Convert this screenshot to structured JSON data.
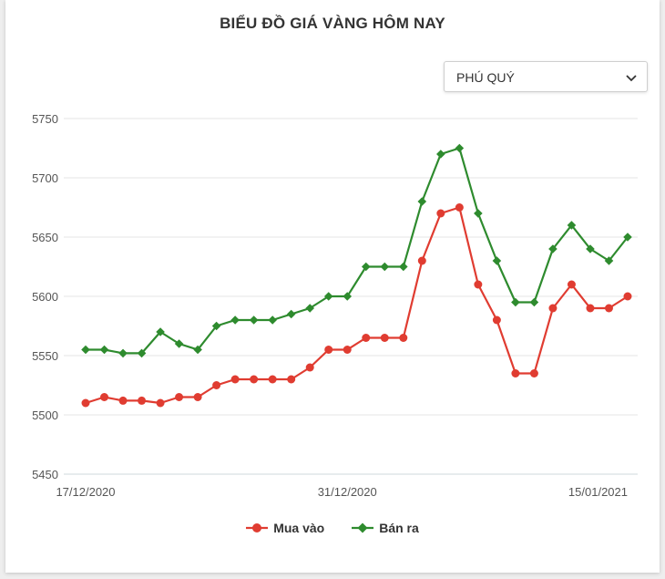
{
  "title": "BIỂU ĐỒ GIÁ VÀNG HÔM NAY",
  "dropdown": {
    "selected": "PHÚ QUÝ",
    "icon": "chevron-down-icon"
  },
  "chart_data": {
    "type": "line",
    "title": "BIỂU ĐỒ GIÁ VÀNG HÔM NAY",
    "xlabel": "",
    "ylabel": "",
    "ylim": [
      5450,
      5750
    ],
    "yticks": [
      5450,
      5500,
      5550,
      5600,
      5650,
      5700,
      5750
    ],
    "xtick_labels": [
      {
        "index": 0,
        "label": "17/12/2020"
      },
      {
        "index": 14,
        "label": "31/12/2020"
      },
      {
        "index": 29,
        "label": "15/01/2021"
      }
    ],
    "grid": true,
    "legend_position": "bottom",
    "series": [
      {
        "name": "Mua vào",
        "color": "#e03c31",
        "marker": "circle",
        "values": [
          5510,
          5515,
          5512,
          5512,
          5510,
          5515,
          5515,
          5525,
          5530,
          5530,
          5530,
          5530,
          5540,
          5555,
          5555,
          5565,
          5565,
          5565,
          5630,
          5670,
          5675,
          5610,
          5580,
          5535,
          5535,
          5590,
          5610,
          5590,
          5590,
          5600
        ]
      },
      {
        "name": "Bán ra",
        "color": "#2e8b2e",
        "marker": "diamond",
        "values": [
          5555,
          5555,
          5552,
          5552,
          5570,
          5560,
          5555,
          5575,
          5580,
          5580,
          5580,
          5585,
          5590,
          5600,
          5600,
          5625,
          5625,
          5625,
          5680,
          5720,
          5725,
          5670,
          5630,
          5595,
          5595,
          5640,
          5660,
          5640,
          5630,
          5650
        ]
      }
    ]
  }
}
